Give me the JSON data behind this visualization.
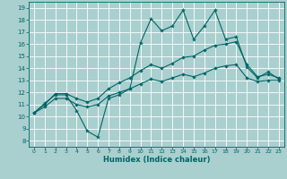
{
  "xlabel": "Humidex (Indice chaleur)",
  "bg_color": "#aacfcf",
  "grid_color": "#ffffff",
  "line_color": "#006666",
  "xlim": [
    -0.5,
    23.5
  ],
  "ylim": [
    7.5,
    19.5
  ],
  "yticks": [
    8,
    9,
    10,
    11,
    12,
    13,
    14,
    15,
    16,
    17,
    18,
    19
  ],
  "xticks": [
    0,
    1,
    2,
    3,
    4,
    5,
    6,
    7,
    8,
    9,
    10,
    11,
    12,
    13,
    14,
    15,
    16,
    17,
    18,
    19,
    20,
    21,
    22,
    23
  ],
  "x": [
    0,
    1,
    2,
    3,
    4,
    5,
    6,
    7,
    8,
    9,
    10,
    11,
    12,
    13,
    14,
    15,
    16,
    17,
    18,
    19,
    20,
    21,
    22,
    23
  ],
  "line_max": [
    10.3,
    11.1,
    11.8,
    11.8,
    10.5,
    8.8,
    8.3,
    11.5,
    11.8,
    12.3,
    16.1,
    18.1,
    17.1,
    17.5,
    18.8,
    16.4,
    17.5,
    18.8,
    16.4,
    16.6,
    14.1,
    13.2,
    13.7,
    13.1
  ],
  "line_mean": [
    10.3,
    11.0,
    11.9,
    11.9,
    11.5,
    11.2,
    11.5,
    12.3,
    12.8,
    13.2,
    13.8,
    14.3,
    14.0,
    14.4,
    14.9,
    15.0,
    15.5,
    15.9,
    16.0,
    16.2,
    14.3,
    13.3,
    13.5,
    13.2
  ],
  "line_min": [
    10.3,
    10.8,
    11.5,
    11.5,
    11.0,
    10.8,
    11.0,
    11.7,
    12.0,
    12.3,
    12.7,
    13.1,
    12.9,
    13.2,
    13.5,
    13.3,
    13.6,
    14.0,
    14.2,
    14.3,
    13.2,
    12.9,
    13.0,
    13.0
  ]
}
